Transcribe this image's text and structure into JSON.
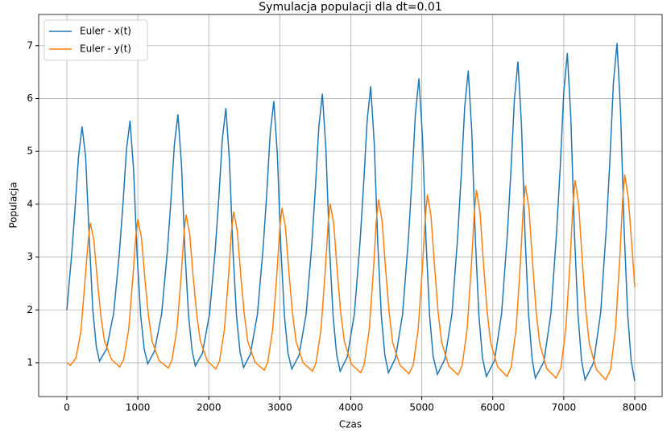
{
  "chart_data": {
    "type": "line",
    "title": "Symulacja populacji dla dt=0.01",
    "x_label": "Czas",
    "y_label": "Populacja",
    "xlim": [
      -397,
      8386
    ],
    "ylim": [
      0.36,
      7.59
    ],
    "xticks": [
      0,
      1000,
      2000,
      3000,
      4000,
      5000,
      6000,
      7000,
      8000
    ],
    "yticks": [
      1,
      2,
      3,
      4,
      5,
      6,
      7
    ],
    "grid": true,
    "legend": "upper-left",
    "series": [
      {
        "name": "Euler - x(t)",
        "color": "#1f77b4",
        "x": [
          0,
          65,
          115,
          165,
          215,
          265,
          315,
          365,
          415,
          460,
          560,
          660,
          740,
          790,
          840,
          890,
          940,
          990,
          1040,
          1090,
          1140,
          1235,
          1335,
          1415,
          1465,
          1515,
          1565,
          1615,
          1665,
          1715,
          1765,
          1810,
          1910,
          2010,
          2090,
          2140,
          2190,
          2240,
          2290,
          2340,
          2390,
          2440,
          2490,
          2585,
          2685,
          2765,
          2815,
          2865,
          2915,
          2965,
          3015,
          3065,
          3115,
          3170,
          3270,
          3370,
          3450,
          3500,
          3550,
          3600,
          3650,
          3700,
          3750,
          3800,
          3850,
          3950,
          4050,
          4130,
          4180,
          4230,
          4280,
          4330,
          4380,
          4430,
          4480,
          4530,
          4630,
          4730,
          4810,
          4860,
          4910,
          4960,
          5010,
          5060,
          5110,
          5160,
          5220,
          5325,
          5425,
          5505,
          5555,
          5605,
          5655,
          5705,
          5755,
          5805,
          5855,
          5910,
          6025,
          6125,
          6205,
          6255,
          6305,
          6355,
          6405,
          6455,
          6505,
          6555,
          6600,
          6720,
          6820,
          6900,
          6950,
          7000,
          7050,
          7100,
          7150,
          7200,
          7250,
          7300,
          7420,
          7520,
          7600,
          7650,
          7700,
          7750,
          7800,
          7850,
          7900,
          7950,
          8000
        ],
        "values": [
          2.0,
          3.0,
          3.9,
          4.9,
          5.47,
          4.9,
          3.4,
          2.0,
          1.3,
          1.03,
          1.26,
          1.94,
          3.08,
          3.99,
          5.03,
          5.58,
          4.66,
          3.05,
          1.9,
          1.26,
          0.98,
          1.22,
          1.92,
          3.1,
          4.05,
          5.13,
          5.7,
          4.75,
          3.08,
          1.89,
          1.23,
          0.94,
          1.18,
          1.92,
          3.14,
          4.11,
          5.23,
          5.82,
          4.84,
          3.12,
          1.89,
          1.2,
          0.91,
          1.16,
          1.92,
          3.18,
          4.19,
          5.35,
          5.95,
          4.94,
          3.16,
          1.89,
          1.18,
          0.88,
          1.14,
          1.92,
          3.22,
          4.27,
          5.46,
          6.09,
          5.04,
          3.2,
          1.89,
          1.16,
          0.84,
          1.11,
          1.92,
          3.27,
          4.34,
          5.58,
          6.23,
          5.15,
          3.25,
          1.89,
          1.14,
          0.81,
          1.09,
          1.92,
          3.32,
          4.43,
          5.71,
          6.38,
          5.26,
          3.3,
          1.9,
          1.12,
          0.78,
          1.07,
          1.93,
          3.37,
          4.52,
          5.84,
          6.53,
          5.37,
          3.35,
          1.9,
          1.09,
          0.74,
          1.04,
          1.93,
          3.42,
          4.61,
          5.98,
          6.7,
          5.5,
          3.41,
          1.91,
          1.07,
          0.71,
          1.02,
          1.94,
          3.48,
          4.71,
          6.12,
          6.86,
          5.62,
          3.46,
          1.92,
          1.05,
          0.68,
          1.0,
          1.95,
          3.55,
          4.82,
          6.29,
          7.05,
          5.75,
          3.53,
          1.92,
          1.03,
          0.65
        ]
      },
      {
        "name": "Euler - y(t)",
        "color": "#ff7f0e",
        "x": [
          0,
          50,
          130,
          200,
          260,
          300,
          330,
          380,
          430,
          480,
          530,
          630,
          745,
          800,
          870,
          930,
          970,
          1000,
          1050,
          1100,
          1150,
          1200,
          1300,
          1430,
          1480,
          1550,
          1610,
          1650,
          1680,
          1730,
          1780,
          1830,
          1880,
          1980,
          2100,
          2150,
          2220,
          2280,
          2320,
          2350,
          2400,
          2450,
          2500,
          2550,
          2650,
          2780,
          2830,
          2900,
          2960,
          3000,
          3030,
          3080,
          3130,
          3180,
          3230,
          3330,
          3460,
          3510,
          3580,
          3640,
          3680,
          3710,
          3760,
          3810,
          3860,
          3910,
          4010,
          4140,
          4190,
          4260,
          4320,
          4360,
          4390,
          4440,
          4490,
          4540,
          4590,
          4690,
          4820,
          4880,
          4950,
          5010,
          5050,
          5080,
          5130,
          5180,
          5230,
          5280,
          5380,
          5510,
          5570,
          5640,
          5700,
          5740,
          5770,
          5820,
          5870,
          5920,
          5970,
          6070,
          6200,
          6260,
          6330,
          6390,
          6430,
          6460,
          6510,
          6560,
          6610,
          6660,
          6760,
          6890,
          6960,
          7030,
          7090,
          7130,
          7160,
          7210,
          7260,
          7310,
          7360,
          7460,
          7590,
          7660,
          7730,
          7790,
          7830,
          7860,
          7910,
          7960,
          8000
        ],
        "values": [
          1.0,
          0.95,
          1.09,
          1.61,
          2.63,
          3.29,
          3.65,
          3.32,
          2.56,
          1.88,
          1.41,
          1.06,
          0.92,
          1.06,
          1.62,
          2.6,
          3.38,
          3.72,
          3.38,
          2.59,
          1.89,
          1.41,
          1.04,
          0.9,
          1.05,
          1.63,
          2.64,
          3.45,
          3.8,
          3.45,
          2.63,
          1.9,
          1.41,
          1.03,
          0.88,
          1.03,
          1.63,
          2.67,
          3.5,
          3.86,
          3.5,
          2.66,
          1.91,
          1.4,
          1.01,
          0.86,
          1.01,
          1.63,
          2.7,
          3.56,
          3.93,
          3.56,
          2.69,
          1.92,
          1.4,
          1.0,
          0.84,
          1.0,
          1.63,
          2.74,
          3.63,
          4.01,
          3.63,
          2.73,
          1.93,
          1.39,
          0.97,
          0.81,
          0.97,
          1.63,
          2.78,
          3.7,
          4.09,
          3.69,
          2.77,
          1.95,
          1.38,
          0.96,
          0.79,
          0.96,
          1.64,
          2.82,
          3.77,
          4.18,
          3.77,
          2.82,
          1.96,
          1.38,
          0.94,
          0.77,
          0.95,
          1.65,
          2.87,
          3.85,
          4.27,
          3.85,
          2.86,
          1.98,
          1.38,
          0.92,
          0.74,
          0.92,
          1.65,
          2.91,
          3.93,
          4.36,
          3.92,
          2.9,
          1.99,
          1.37,
          0.89,
          0.71,
          0.9,
          1.65,
          2.95,
          4.0,
          4.45,
          4.0,
          2.94,
          2.0,
          1.36,
          0.87,
          0.68,
          0.87,
          1.65,
          3.01,
          4.09,
          4.56,
          4.1,
          3.2,
          2.43
        ]
      }
    ]
  }
}
